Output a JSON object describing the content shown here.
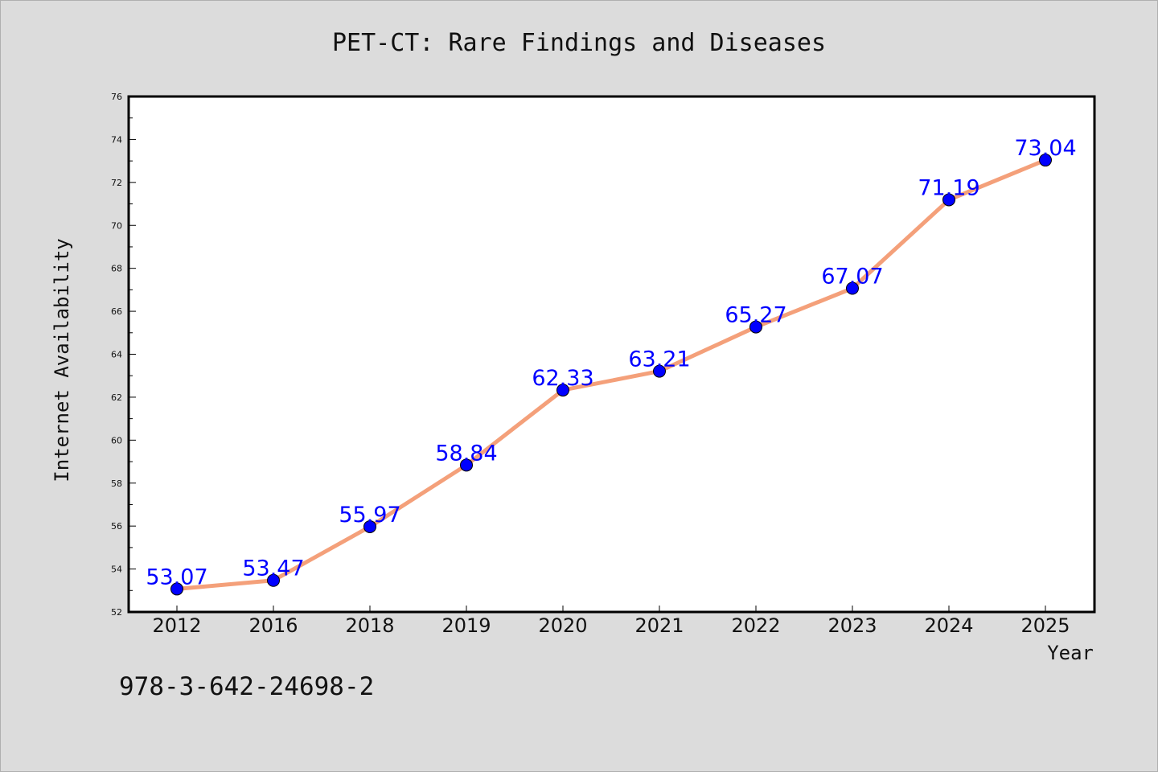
{
  "chart_data": {
    "type": "line",
    "title": "PET-CT: Rare Findings and Diseases",
    "xlabel": "Year",
    "ylabel": "Internet Availability",
    "categories": [
      "2012",
      "2016",
      "2018",
      "2019",
      "2020",
      "2021",
      "2022",
      "2023",
      "2024",
      "2025"
    ],
    "series": [
      {
        "values": [
          53.07,
          53.47,
          55.97,
          58.84,
          62.33,
          63.21,
          65.27,
          67.07,
          71.19,
          73.04
        ],
        "labels": [
          "53.07",
          "53.47",
          "55.97",
          "58.84",
          "62.33",
          "63.21",
          "65.27",
          "67.07",
          "71.19",
          "73.04"
        ],
        "line_color": "#f4a07a",
        "marker_color": "#0000ff",
        "label_color": "#0000ff"
      }
    ],
    "ylim": [
      52,
      76
    ],
    "y_ticks": [
      "52",
      "54",
      "56",
      "58",
      "60",
      "62",
      "64",
      "66",
      "68",
      "70",
      "72",
      "74",
      "76"
    ],
    "grid": false,
    "annotation": "978-3-642-24698-2"
  }
}
